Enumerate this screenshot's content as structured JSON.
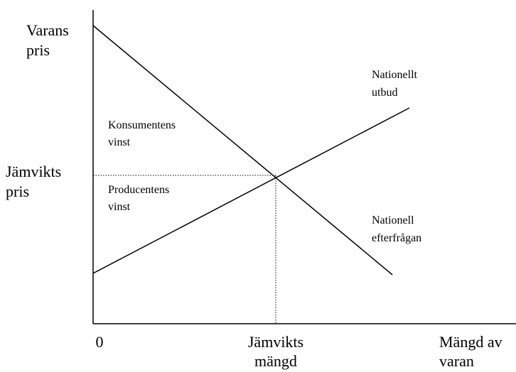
{
  "y_axis_label": [
    "Varans",
    "pris"
  ],
  "equilibrium_price_label": [
    "Jämvikts",
    "pris"
  ],
  "origin_label": "0",
  "equilibrium_quantity_label": [
    "Jämvikts",
    "mängd"
  ],
  "x_axis_label": [
    "Mängd av",
    "varan"
  ],
  "consumer_surplus_label": [
    "Konsumentens",
    "vinst"
  ],
  "producer_surplus_label": [
    "Producentens",
    "vinst"
  ],
  "supply_label": [
    "Nationellt",
    "utbud"
  ],
  "demand_label": [
    "Nationell",
    "efterfrågan"
  ]
}
